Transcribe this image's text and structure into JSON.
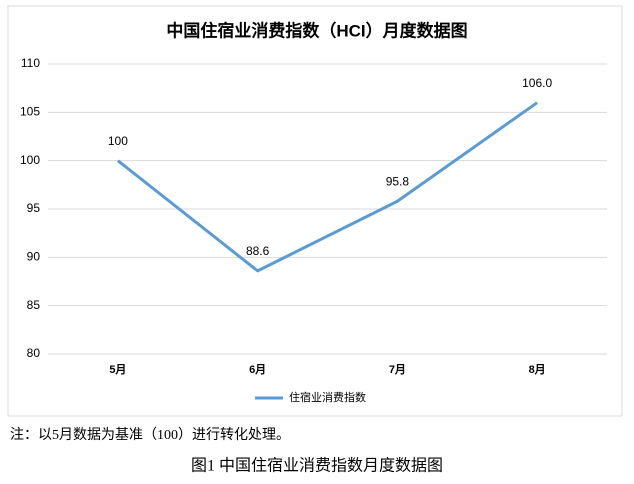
{
  "chart_data": {
    "type": "line",
    "title": "中国住宿业消费指数（HCI）月度数据图",
    "categories": [
      "5月",
      "6月",
      "7月",
      "8月"
    ],
    "series": [
      {
        "name": "住宿业消费指数",
        "color": "#5b9bd5",
        "values": [
          100,
          88.6,
          95.8,
          106.0
        ],
        "value_labels": [
          "100",
          "88.6",
          "95.8",
          "106.0"
        ]
      }
    ],
    "ylim": [
      80,
      110
    ],
    "yticks": [
      80,
      85,
      90,
      95,
      100,
      105,
      110
    ],
    "grid": true,
    "legend": "bottom",
    "note": "注：以5月数据为基准（100）进行转化处理。",
    "caption": "图1  中国住宿业消费指数月度数据图"
  }
}
